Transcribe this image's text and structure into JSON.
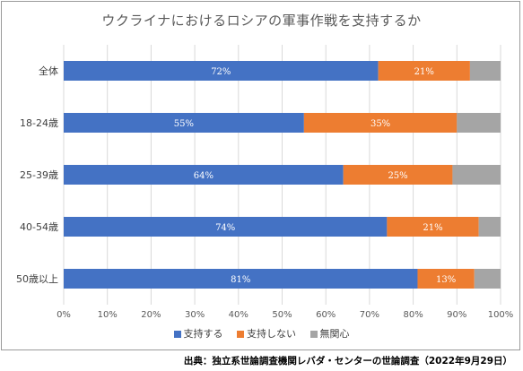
{
  "chart_data": {
    "type": "bar",
    "orientation": "horizontal",
    "stacked": true,
    "title": "ウクライナにおけるロシアの軍事作戦を支持するか",
    "categories": [
      "全体",
      "18-24歳",
      "25-39歳",
      "40-54歳",
      "50歳以上"
    ],
    "series": [
      {
        "name": "支持する",
        "values": [
          72,
          55,
          64,
          74,
          81
        ],
        "labels": [
          "72%",
          "55%",
          "64%",
          "74%",
          "81%"
        ],
        "color": "#4472c4"
      },
      {
        "name": "支持しない",
        "values": [
          21,
          35,
          25,
          21,
          13
        ],
        "labels": [
          "21%",
          "35%",
          "25%",
          "21%",
          "13%"
        ],
        "color": "#ed7d31"
      },
      {
        "name": "無関心",
        "values": [
          7,
          10,
          11,
          5,
          6
        ],
        "labels": [],
        "color": "#a5a5a5"
      }
    ],
    "xlim": [
      0,
      100
    ],
    "xticks": [
      "0%",
      "10%",
      "20%",
      "30%",
      "40%",
      "50%",
      "60%",
      "70%",
      "80%",
      "90%",
      "100%"
    ],
    "grid": true,
    "legend": "bottom"
  },
  "source": "出典：独立系世論調査機関レバダ・センターの世論調査（2022年9月29日）"
}
